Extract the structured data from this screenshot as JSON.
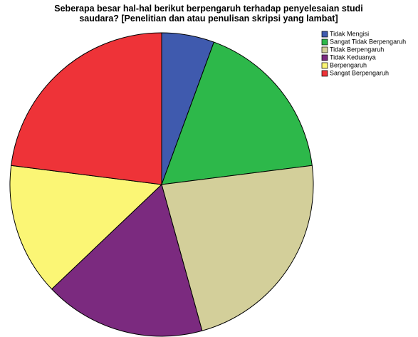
{
  "chart_data": {
    "type": "pie",
    "title": [
      "Seberapa besar hal-hal berikut berpengaruh terhadap penyelesaian studi",
      "saudara? [Penelitian dan atau penulisan skripsi yang lambat]"
    ],
    "categories": [
      "Tidak Mengisi",
      "Sangat Tidak Berpengaruh",
      "Tidak Berpengaruh",
      "Tidak Keduanya",
      "Berpengaruh",
      "Sangat Berpengaruh"
    ],
    "values": [
      5.6,
      17.4,
      22.7,
      17.2,
      14.1,
      23.0
    ],
    "colors": [
      "#3f5aae",
      "#2db84a",
      "#d3cf9a",
      "#7b2a7f",
      "#fbf675",
      "#ee3338"
    ],
    "legend": "top-right"
  }
}
